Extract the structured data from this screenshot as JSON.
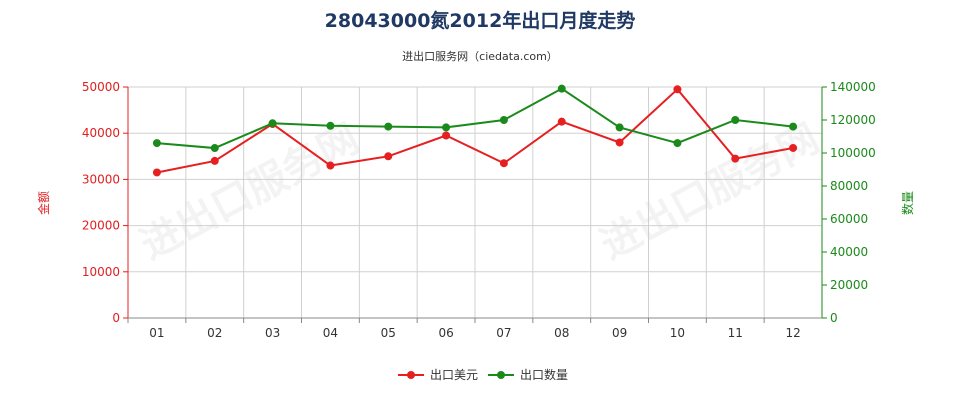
{
  "chart_data": {
    "type": "line",
    "title": "28043000氮2012年出口月度走势",
    "subtitle": "进出口服务网（ciedata.com）",
    "categories": [
      "01",
      "02",
      "03",
      "04",
      "05",
      "06",
      "07",
      "08",
      "09",
      "10",
      "11",
      "12"
    ],
    "y_left": {
      "label": "金额",
      "ylim": [
        0,
        50000
      ],
      "ticks": [
        0,
        10000,
        20000,
        30000,
        40000,
        50000
      ],
      "color": "#e02020"
    },
    "y_right": {
      "label": "数量",
      "ylim": [
        0,
        140000
      ],
      "ticks": [
        0,
        20000,
        40000,
        60000,
        80000,
        100000,
        120000,
        140000
      ],
      "color": "#1a8a1a"
    },
    "series": [
      {
        "name": "出口美元",
        "axis": "left",
        "color": "#e62020",
        "values": [
          31500,
          34000,
          42000,
          33000,
          35000,
          39500,
          33500,
          42500,
          38000,
          49500,
          34500,
          36800
        ]
      },
      {
        "name": "出口数量",
        "axis": "right",
        "color": "#1a8a1a",
        "values": [
          106000,
          103000,
          118000,
          116500,
          116000,
          115500,
          120000,
          139000,
          115500,
          106000,
          120000,
          116000
        ]
      }
    ],
    "grid": true,
    "legend_position": "bottom",
    "watermark": "进出口服务网"
  }
}
